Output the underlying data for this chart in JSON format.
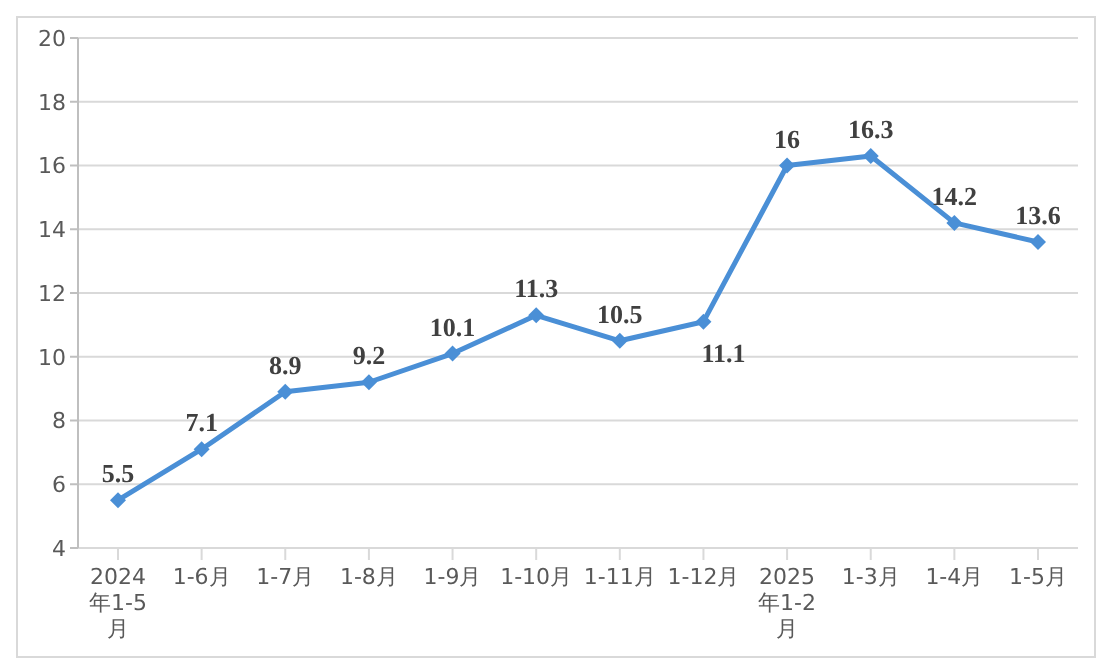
{
  "chart_data": {
    "type": "line",
    "categories": [
      "2024年1-5月",
      "1-6月",
      "1-7月",
      "1-8月",
      "1-9月",
      "1-10月",
      "1-11月",
      "1-12月",
      "2025年1-2月",
      "1-3月",
      "1-4月",
      "1-5月"
    ],
    "series": [
      {
        "color": "#4a8fd6",
        "values": [
          5.5,
          7.1,
          8.9,
          9.2,
          10.1,
          11.3,
          10.5,
          11.1,
          16,
          16.3,
          14.2,
          13.6
        ]
      }
    ],
    "ylim": [
      4,
      20
    ],
    "yticks": [
      4,
      6,
      8,
      10,
      12,
      14,
      16,
      18,
      20
    ],
    "grid": "y",
    "marker": "diamond",
    "line_style": "solid",
    "data_labels": true,
    "legend": false
  }
}
